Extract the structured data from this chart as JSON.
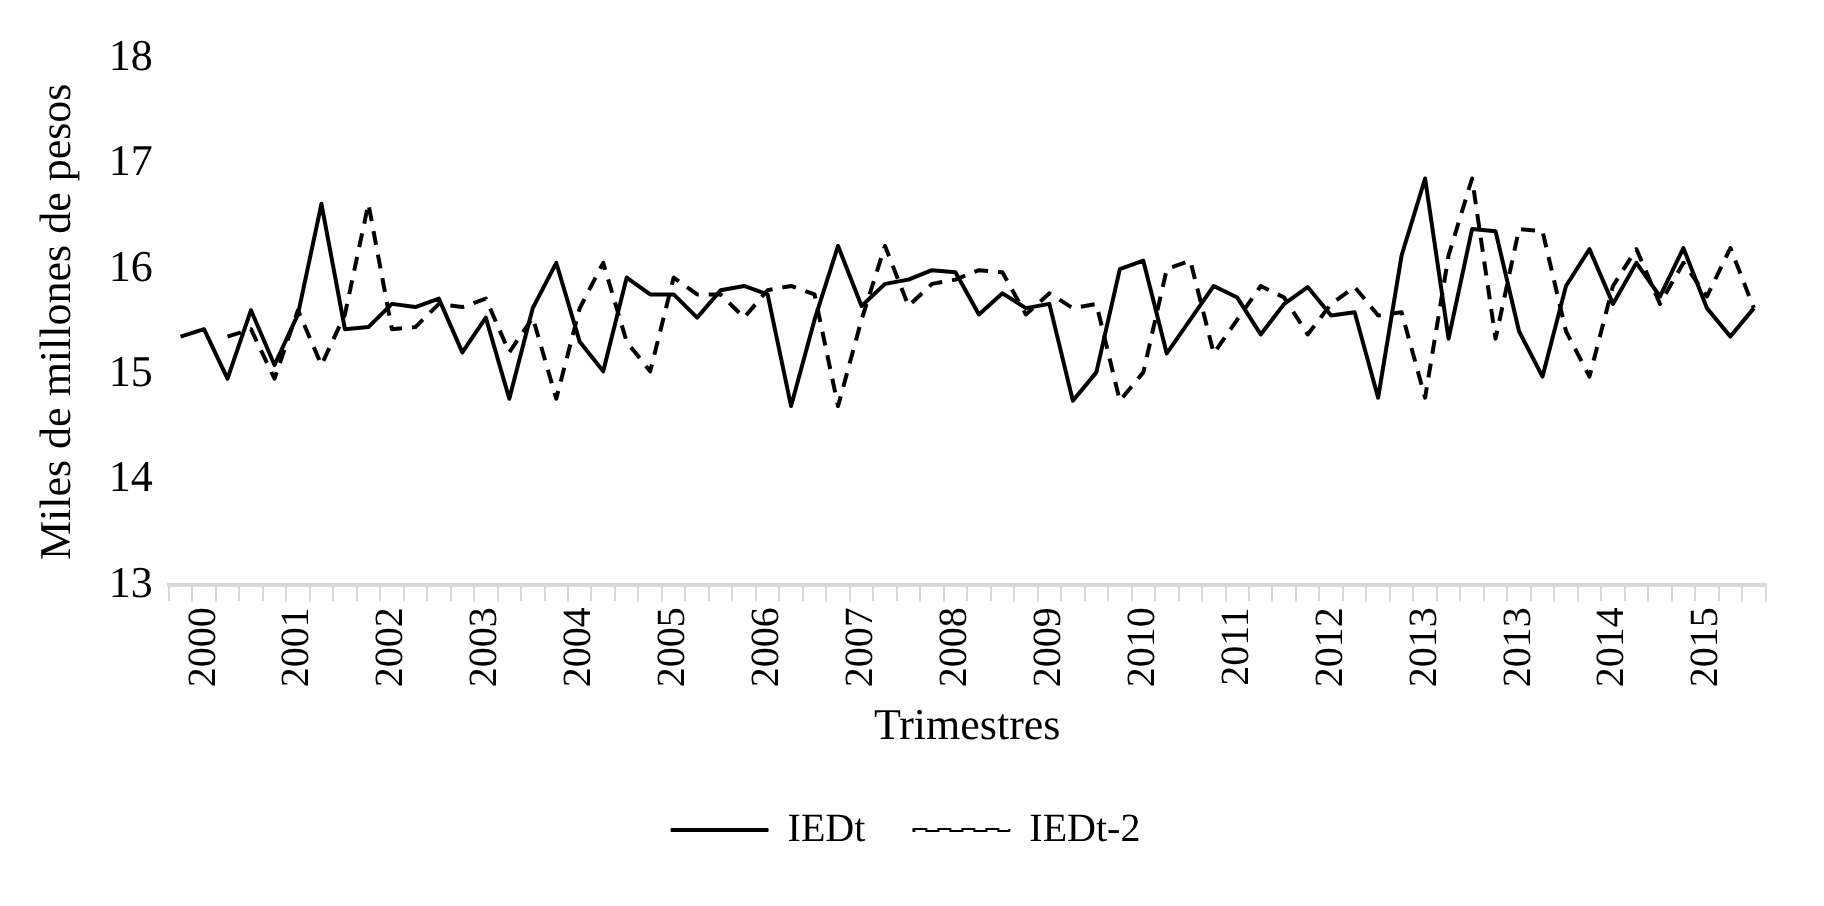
{
  "chart_data": {
    "type": "line",
    "xlabel": "Trimestres",
    "ylabel": "Miles de millones de pesos",
    "categories": [
      null,
      "2000",
      null,
      null,
      null,
      "2001",
      null,
      null,
      null,
      "2002",
      null,
      null,
      null,
      "2003",
      null,
      null,
      null,
      "2004",
      null,
      null,
      null,
      "2005",
      null,
      null,
      null,
      "2006",
      null,
      null,
      null,
      "2007",
      null,
      null,
      null,
      "2008",
      null,
      null,
      null,
      "2009",
      null,
      null,
      null,
      "2010",
      null,
      null,
      null,
      "2011",
      null,
      null,
      null,
      "2012",
      null,
      null,
      null,
      "2013",
      null,
      null,
      null,
      "2013",
      null,
      null,
      null,
      "2014",
      null,
      null,
      null,
      "2015",
      null,
      null
    ],
    "series": [
      {
        "name": "IEDt",
        "color": "#000000",
        "line_style": "solid",
        "values": [
          15.36,
          15.43,
          14.96,
          15.61,
          15.09,
          15.57,
          16.62,
          15.43,
          15.45,
          15.67,
          15.64,
          15.72,
          15.21,
          15.54,
          14.77,
          15.63,
          16.06,
          15.31,
          15.03,
          15.92,
          15.76,
          15.76,
          15.54,
          15.8,
          15.84,
          15.76,
          14.7,
          15.52,
          16.22,
          15.65,
          15.86,
          15.9,
          15.99,
          15.97,
          15.57,
          15.77,
          15.63,
          15.67,
          14.75,
          15.02,
          16.0,
          16.08,
          15.2,
          15.52,
          15.84,
          15.73,
          15.38,
          15.67,
          15.83,
          15.56,
          15.59,
          14.78,
          16.13,
          16.86,
          15.34,
          16.38,
          16.36,
          15.41,
          14.98,
          15.84,
          16.19,
          15.67,
          16.06,
          15.74,
          16.2,
          15.63,
          15.36,
          15.63
        ]
      },
      {
        "name": "IEDt-2",
        "color": "#000000",
        "line_style": "dashed",
        "values": [
          null,
          null,
          15.36,
          15.43,
          14.96,
          15.61,
          15.09,
          15.57,
          16.62,
          15.43,
          15.45,
          15.67,
          15.64,
          15.72,
          15.21,
          15.54,
          14.77,
          15.63,
          16.06,
          15.31,
          15.03,
          15.92,
          15.76,
          15.76,
          15.54,
          15.8,
          15.84,
          15.76,
          14.7,
          15.52,
          16.22,
          15.65,
          15.86,
          15.9,
          15.99,
          15.97,
          15.57,
          15.77,
          15.63,
          15.67,
          14.75,
          15.02,
          16.0,
          16.08,
          15.2,
          15.52,
          15.84,
          15.73,
          15.38,
          15.67,
          15.83,
          15.56,
          15.59,
          14.78,
          16.13,
          16.86,
          15.34,
          16.38,
          16.36,
          15.41,
          14.98,
          15.84,
          16.19,
          15.67,
          16.06,
          15.74,
          16.2,
          15.63
        ]
      }
    ],
    "ylim": [
      13,
      18
    ],
    "yticks": [
      13,
      14,
      15,
      16,
      17,
      18
    ],
    "grid": false,
    "legend": "bottom",
    "marker": "none"
  }
}
